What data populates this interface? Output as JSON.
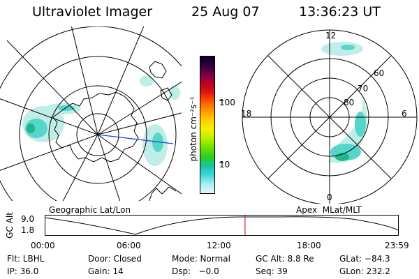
{
  "header": {
    "title": "Ultraviolet Imager",
    "date": "25 Aug 07",
    "time": "13:36:23 UT"
  },
  "colorbar": {
    "label": "photon cm⁻²s⁻¹",
    "ticks": [
      "100",
      "10"
    ],
    "colors": [
      "#000033",
      "#30003a",
      "#7a0048",
      "#b80020",
      "#e01a10",
      "#ff5a00",
      "#ff9a00",
      "#ffd000",
      "#f2f200",
      "#b8f000",
      "#6ee000",
      "#30cc20",
      "#18c4a0",
      "#40d8d8",
      "#a8eef2",
      "#e6f8fb"
    ]
  },
  "left_map": {
    "label": "Geographic Lat/Lon"
  },
  "right_map": {
    "label": "Apex  MLat/MLT",
    "hour_labels": [
      "12",
      "18",
      "6",
      "0"
    ],
    "lat_labels": [
      "60",
      "70",
      "80"
    ]
  },
  "timeline": {
    "axis_label": "GC Alt",
    "y_ticks": [
      "9.0",
      "1.8"
    ],
    "x_ticks": [
      "00:00",
      "06:00",
      "12:00",
      "18:00",
      "23:59"
    ],
    "current_time_fraction": 0.567
  },
  "info": {
    "row1": [
      "Flt: LBHL",
      "Door: Closed",
      "Mode: Normal",
      "GC Alt: 8.8 Re",
      "GLat: −84.3"
    ],
    "row2": [
      "IP: 36.0",
      "Gain: 14",
      "Dsp:   −0.0",
      "Seq: 39",
      "GLon: 232.2"
    ]
  },
  "colors": {
    "aurora_light": "#bfeee8",
    "aurora_mid": "#56d6c8",
    "aurora_strong": "#22b48c",
    "aurora_core": "#6cd030",
    "meridian": "#1f3fcc",
    "time_marker": "#d02020"
  }
}
